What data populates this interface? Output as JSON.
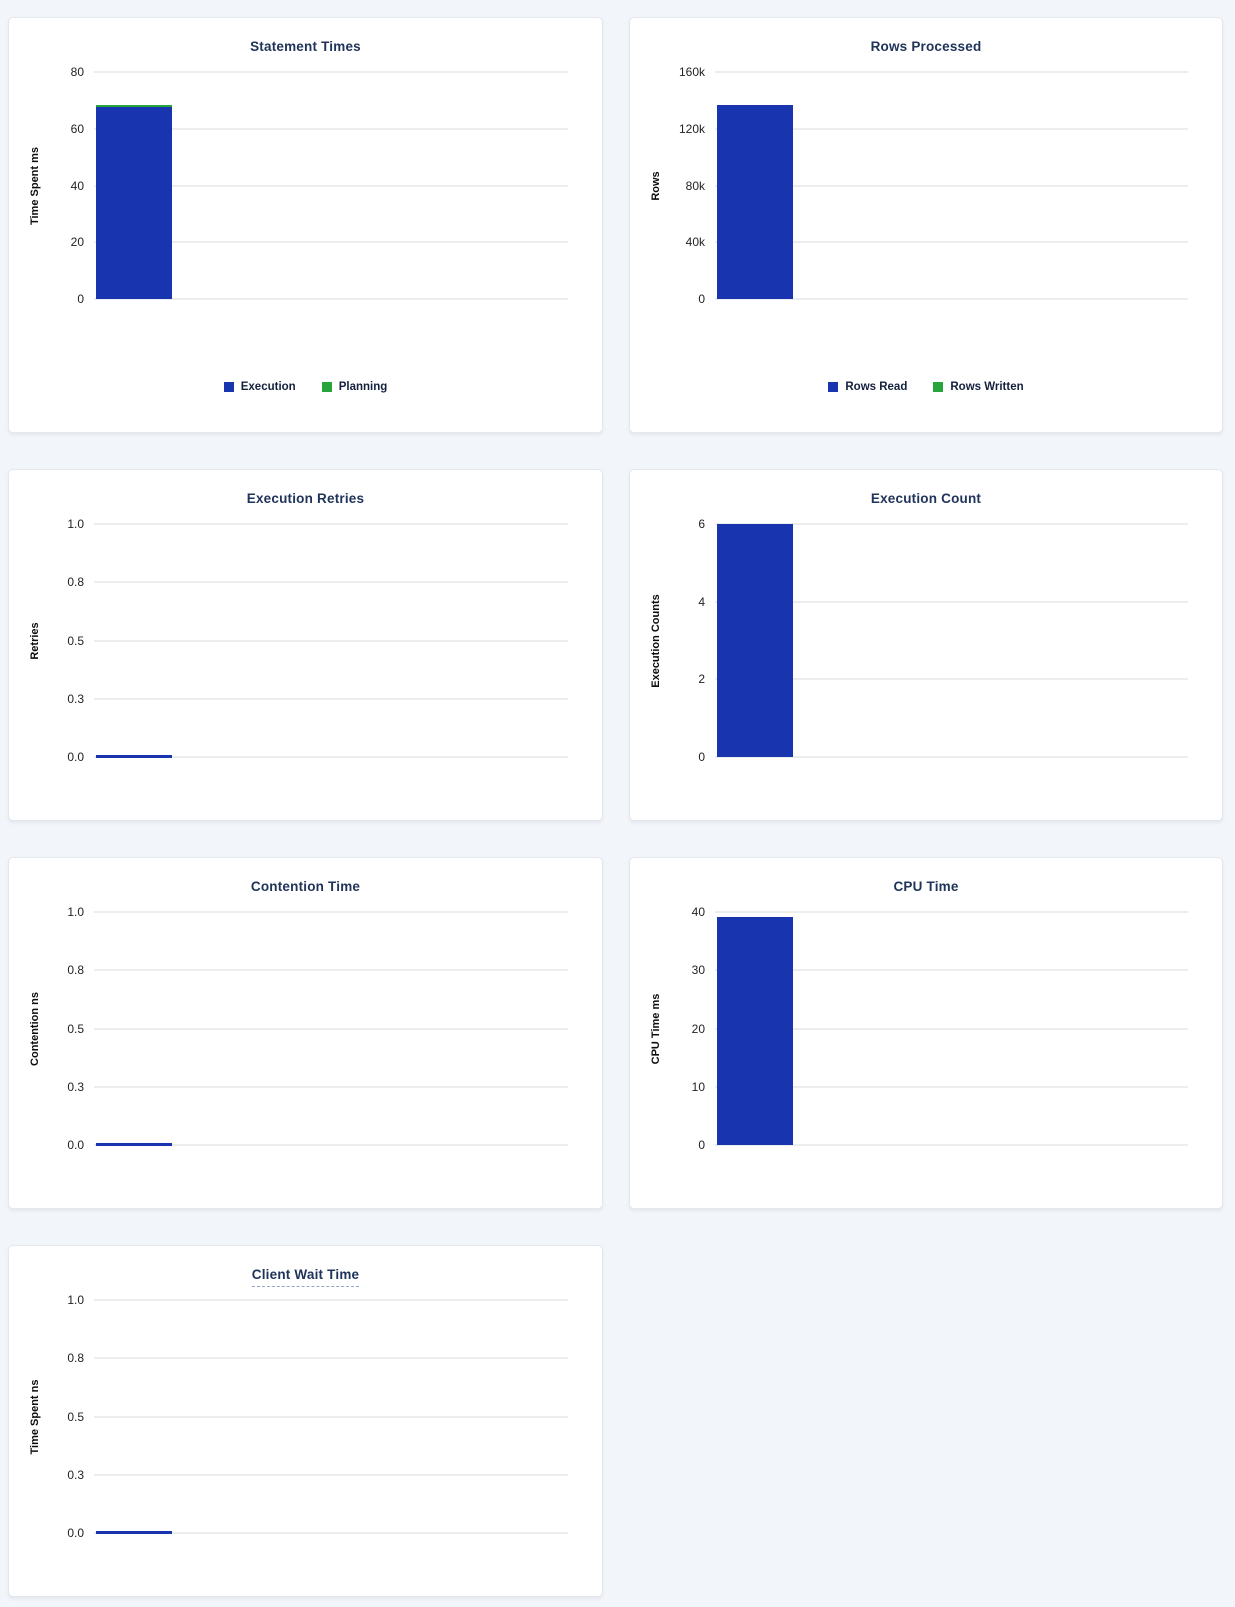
{
  "page": {
    "background_color": "#f2f5f9",
    "description": "Statement details charts dashboard"
  },
  "colors": {
    "bar_blue": "#1834af",
    "bar_green": "#26a53c",
    "title_navy": "#20345a",
    "gridline_gray": "#ebedef"
  },
  "chart_data": [
    {
      "type": "bar",
      "title": "Statement Times",
      "title_underlined": false,
      "ylabel": "Time Spent ms",
      "ylim": [
        0,
        80
      ],
      "grid": "horizontal",
      "stacked": true,
      "categories": [
        ""
      ],
      "yticks": [
        {
          "label": "0",
          "value": 0
        },
        {
          "label": "20",
          "value": 20
        },
        {
          "label": "40",
          "value": 40
        },
        {
          "label": "60",
          "value": 60
        },
        {
          "label": "80",
          "value": 80
        }
      ],
      "series": [
        {
          "name": "Execution",
          "values": [
            67.5
          ],
          "color": "#1834af"
        },
        {
          "name": "Planning",
          "values": [
            0.7
          ],
          "color": "#26a53c"
        }
      ],
      "legend": {
        "position": "bottom",
        "items": [
          {
            "label": "Execution",
            "color": "#1834af"
          },
          {
            "label": "Planning",
            "color": "#26a53c"
          }
        ]
      }
    },
    {
      "type": "bar",
      "title": "Rows Processed",
      "title_underlined": false,
      "ylabel": "Rows",
      "ylim": [
        0,
        160000
      ],
      "grid": "horizontal",
      "stacked": true,
      "categories": [
        ""
      ],
      "yticks": [
        {
          "label": "0",
          "value": 0
        },
        {
          "label": "40k",
          "value": 40000
        },
        {
          "label": "80k",
          "value": 80000
        },
        {
          "label": "120k",
          "value": 120000
        },
        {
          "label": "160k",
          "value": 160000
        }
      ],
      "series": [
        {
          "name": "Rows Read",
          "values": [
            137000
          ],
          "color": "#1834af"
        },
        {
          "name": "Rows Written",
          "values": [
            0
          ],
          "color": "#26a53c"
        }
      ],
      "legend": {
        "position": "bottom",
        "items": [
          {
            "label": "Rows Read",
            "color": "#1834af"
          },
          {
            "label": "Rows Written",
            "color": "#26a53c"
          }
        ]
      }
    },
    {
      "type": "bar",
      "title": "Execution Retries",
      "title_underlined": false,
      "ylabel": "Retries",
      "ylim": [
        0,
        1
      ],
      "grid": "horizontal",
      "stacked": false,
      "categories": [
        ""
      ],
      "yticks": [
        {
          "label": "0.0",
          "value": 0
        },
        {
          "label": "0.3",
          "value": 0.25
        },
        {
          "label": "0.5",
          "value": 0.5
        },
        {
          "label": "0.8",
          "value": 0.75
        },
        {
          "label": "1.0",
          "value": 1
        }
      ],
      "series": [
        {
          "name": "Retries",
          "values": [
            0
          ],
          "color": "#1834af"
        }
      ],
      "legend": null
    },
    {
      "type": "bar",
      "title": "Execution Count",
      "title_underlined": false,
      "ylabel": "Execution Counts",
      "ylim": [
        0,
        6
      ],
      "grid": "horizontal",
      "stacked": false,
      "categories": [
        ""
      ],
      "yticks": [
        {
          "label": "0",
          "value": 0
        },
        {
          "label": "2",
          "value": 2
        },
        {
          "label": "4",
          "value": 4
        },
        {
          "label": "6",
          "value": 6
        }
      ],
      "series": [
        {
          "name": "Execution Count",
          "values": [
            6
          ],
          "color": "#1834af"
        }
      ],
      "legend": null
    },
    {
      "type": "bar",
      "title": "Contention Time",
      "title_underlined": false,
      "ylabel": "Contention ns",
      "ylim": [
        0,
        1
      ],
      "grid": "horizontal",
      "stacked": false,
      "categories": [
        ""
      ],
      "yticks": [
        {
          "label": "0.0",
          "value": 0
        },
        {
          "label": "0.3",
          "value": 0.25
        },
        {
          "label": "0.5",
          "value": 0.5
        },
        {
          "label": "0.8",
          "value": 0.75
        },
        {
          "label": "1.0",
          "value": 1
        }
      ],
      "series": [
        {
          "name": "Contention",
          "values": [
            0
          ],
          "color": "#1834af"
        }
      ],
      "legend": null
    },
    {
      "type": "bar",
      "title": "CPU Time",
      "title_underlined": false,
      "ylabel": "CPU Time ms",
      "ylim": [
        0,
        40
      ],
      "grid": "horizontal",
      "stacked": false,
      "categories": [
        ""
      ],
      "yticks": [
        {
          "label": "0",
          "value": 0
        },
        {
          "label": "10",
          "value": 10
        },
        {
          "label": "20",
          "value": 20
        },
        {
          "label": "30",
          "value": 30
        },
        {
          "label": "40",
          "value": 40
        }
      ],
      "series": [
        {
          "name": "CPU Time",
          "values": [
            39.2
          ],
          "color": "#1834af"
        }
      ],
      "legend": null
    },
    {
      "type": "bar",
      "title": "Client Wait Time",
      "title_underlined": true,
      "ylabel": "Time Spent ns",
      "ylim": [
        0,
        1
      ],
      "grid": "horizontal",
      "stacked": false,
      "categories": [
        ""
      ],
      "yticks": [
        {
          "label": "0.0",
          "value": 0
        },
        {
          "label": "0.3",
          "value": 0.25
        },
        {
          "label": "0.5",
          "value": 0.5
        },
        {
          "label": "0.8",
          "value": 0.75
        },
        {
          "label": "1.0",
          "value": 1
        }
      ],
      "series": [
        {
          "name": "Client Wait",
          "values": [
            0
          ],
          "color": "#1834af"
        }
      ],
      "legend": null
    }
  ]
}
